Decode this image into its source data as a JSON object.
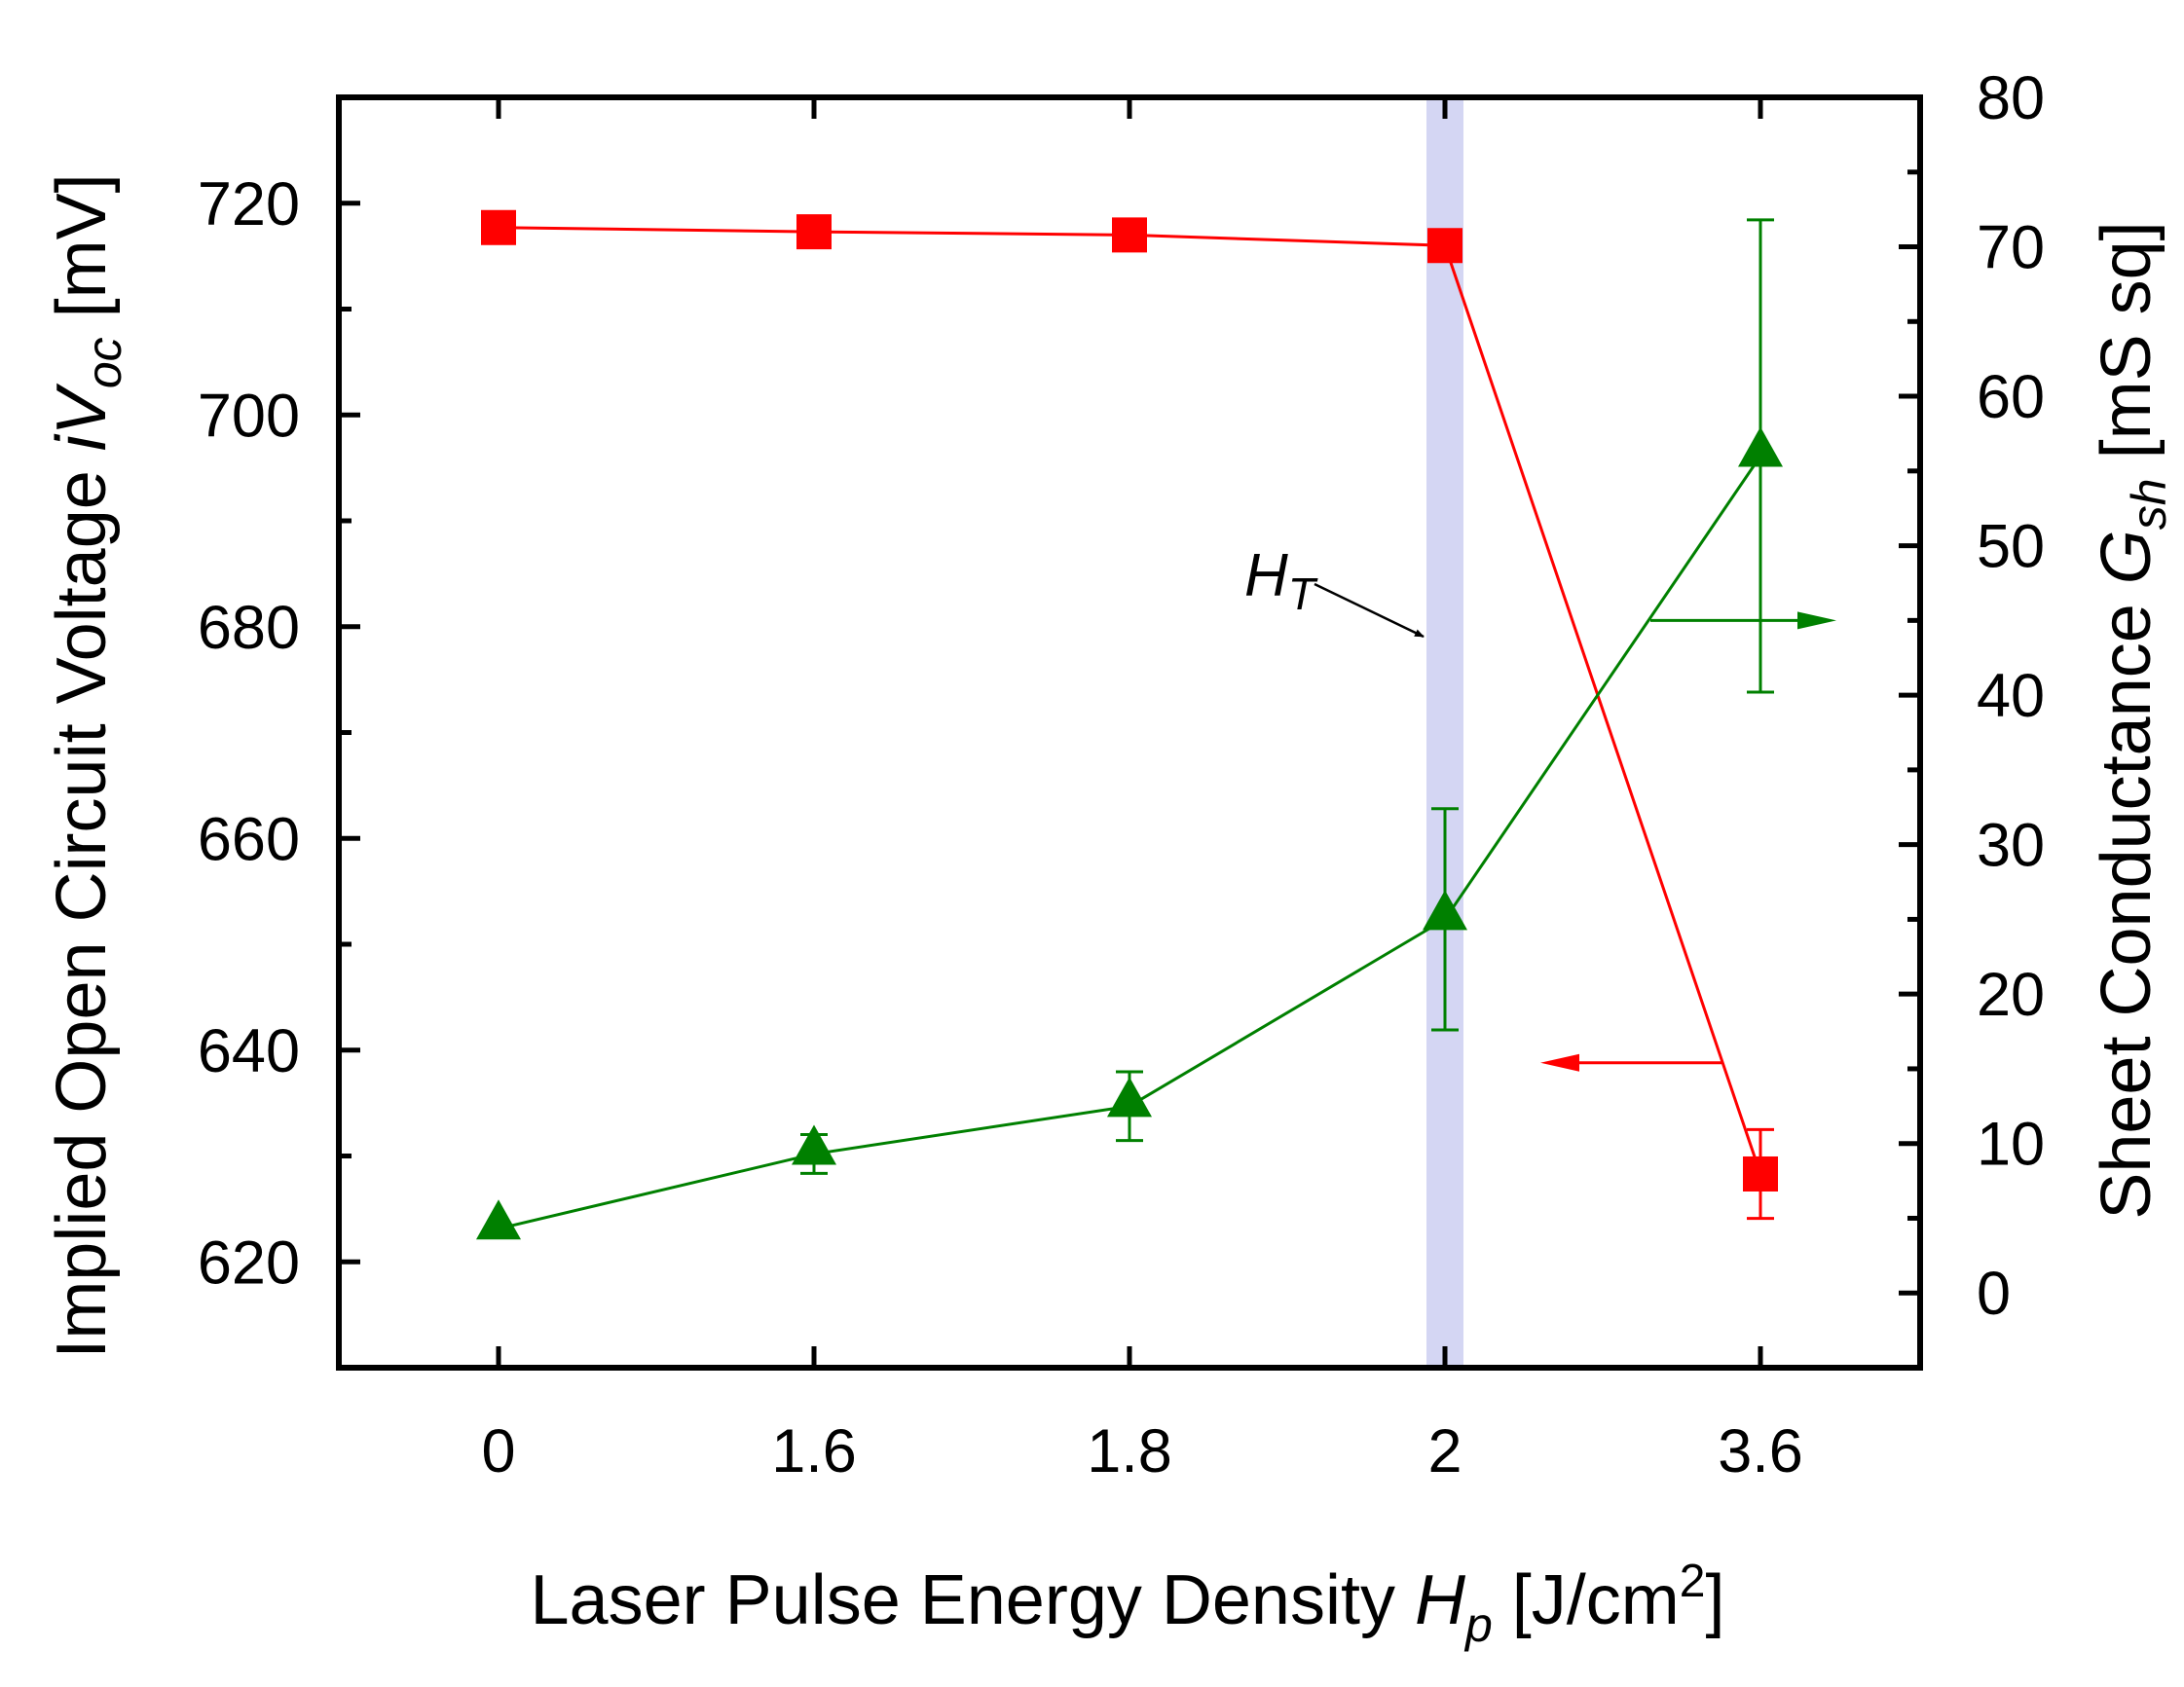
{
  "chart_data": {
    "type": "line",
    "categories": [
      "0",
      "1.6",
      "1.8",
      "2",
      "3.6"
    ],
    "x_axis": {
      "label_prefix": "Laser Pulse Energy Density ",
      "label_var": "H",
      "label_sub": "p",
      "label_unit": " [J/cm",
      "label_sup": "2",
      "label_close": "]"
    },
    "left_axis": {
      "label_prefix": "Implied Open Circuit Voltage ",
      "label_var": "iV",
      "label_sub": "oc",
      "label_unit": " [mV]",
      "ylim": [
        610,
        730
      ],
      "major_ticks": [
        620,
        640,
        660,
        680,
        700,
        720
      ],
      "tick_labels": [
        "620",
        "640",
        "660",
        "680",
        "700",
        "720"
      ],
      "minor_step": 10
    },
    "right_axis": {
      "label_prefix": "Sheet Conductance ",
      "label_var": "G",
      "label_sub": "sh",
      "label_unit": " [mS sq]",
      "ylim": [
        -5,
        80
      ],
      "major_ticks": [
        0,
        10,
        20,
        30,
        40,
        50,
        60,
        70,
        80
      ],
      "tick_labels": [
        "0",
        "10",
        "20",
        "30",
        "40",
        "50",
        "60",
        "70",
        "80"
      ],
      "minor_step": 5
    },
    "series": [
      {
        "name": "Implied Open Circuit Voltage iVoc",
        "axis": "left",
        "marker": "square",
        "color": "#ff0000",
        "values": [
          717.7,
          717.3,
          717.0,
          716.0,
          628.3
        ],
        "errors": [
          null,
          null,
          null,
          null,
          4.2
        ]
      },
      {
        "name": "Sheet Conductance Gsh",
        "axis": "right",
        "marker": "triangle",
        "color": "#008000",
        "values": [
          4.3,
          9.3,
          12.5,
          25.0,
          56.0
        ],
        "errors": [
          null,
          1.3,
          2.3,
          7.4,
          15.8
        ]
      }
    ],
    "threshold": {
      "category": "2",
      "label_var": "H",
      "label_sub": "T",
      "band_color": "#d4d6f3"
    },
    "axis_arrows": [
      {
        "series": "Implied Open Circuit Voltage iVoc",
        "points_to": "left",
        "color": "#ff0000"
      },
      {
        "series": "Sheet Conductance Gsh",
        "points_to": "right",
        "color": "#008000"
      }
    ]
  }
}
